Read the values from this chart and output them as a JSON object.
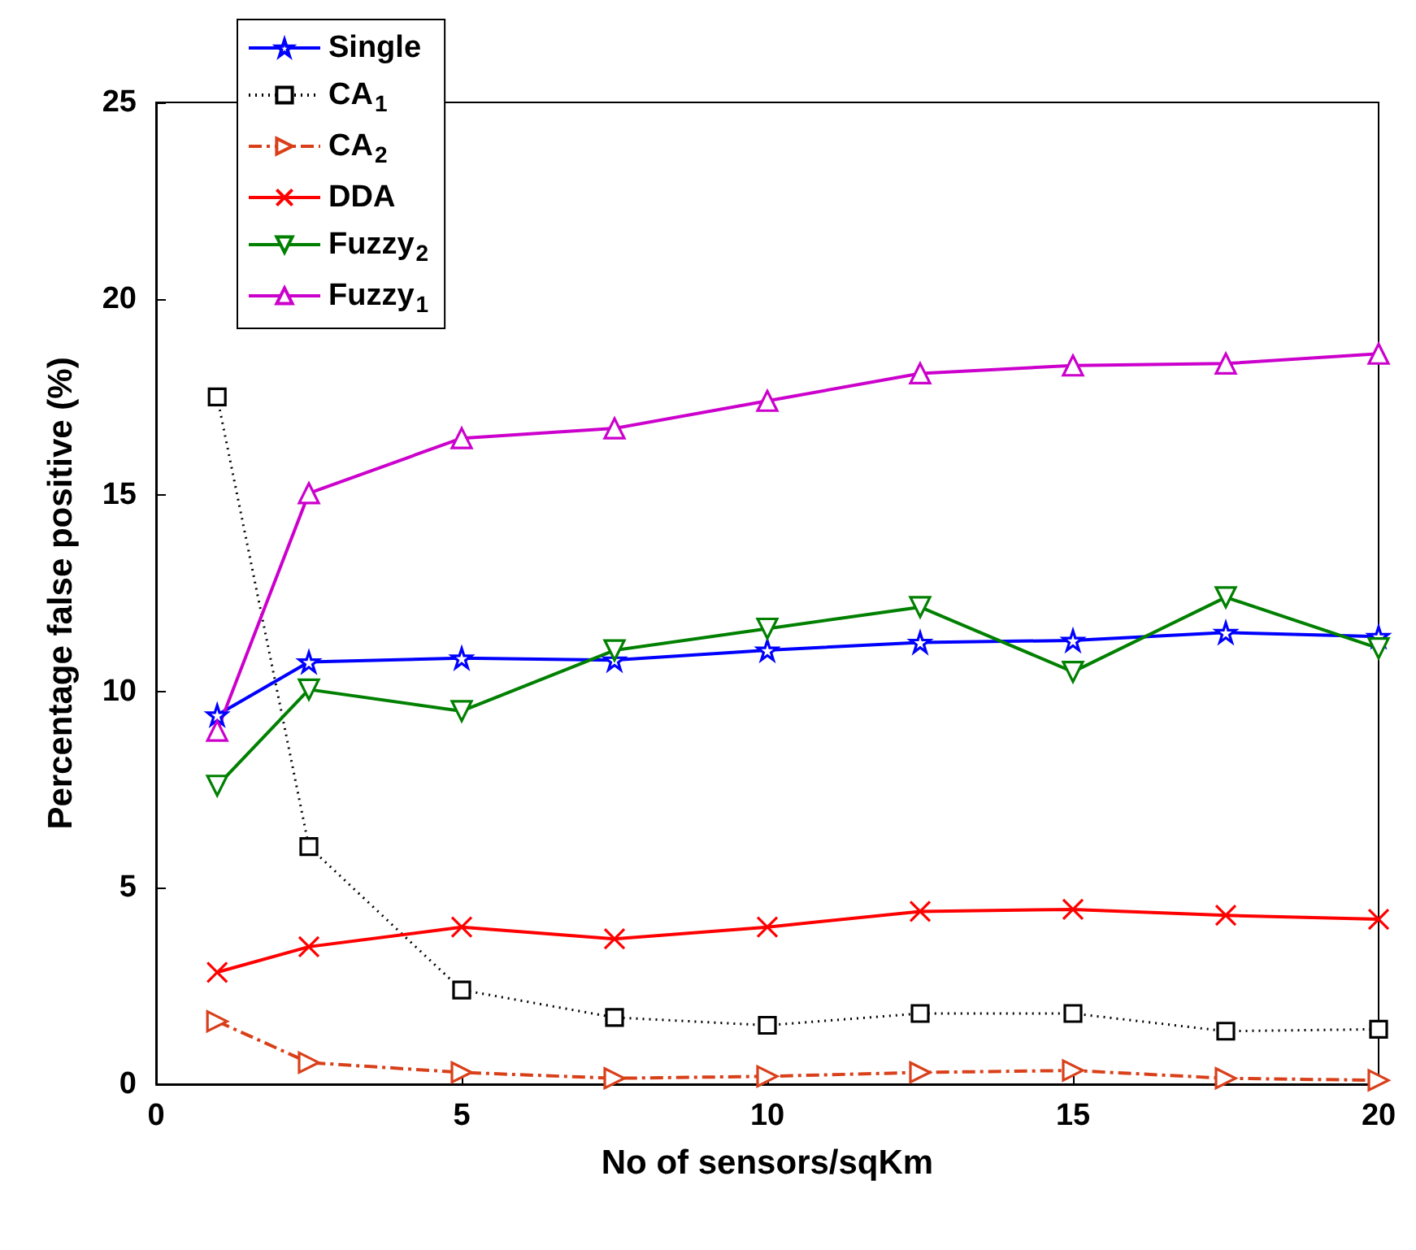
{
  "chart_data": {
    "type": "line",
    "xlabel": "No of sensors/sqKm",
    "ylabel": "Percentage false positive (%)",
    "x": [
      1,
      2.5,
      5,
      7.5,
      10,
      12.5,
      15,
      17.5,
      20
    ],
    "xlim": [
      0,
      20
    ],
    "xticks": [
      0,
      5,
      10,
      15,
      20
    ],
    "ylim": [
      0,
      25
    ],
    "yticks": [
      0,
      5,
      10,
      15,
      20,
      25
    ],
    "grid": false,
    "legend": "top left",
    "series": [
      {
        "name": "Single",
        "color": "#0000ff",
        "marker": "star",
        "line_style": "solid",
        "values": [
          9.4,
          10.75,
          10.85,
          10.8,
          11.05,
          11.25,
          11.3,
          11.5,
          11.4
        ]
      },
      {
        "name": "CA$_{1}$",
        "color": "#000000",
        "marker": "square",
        "line_style": "dotted",
        "values": [
          17.5,
          6.05,
          2.4,
          1.7,
          1.5,
          1.8,
          1.8,
          1.35,
          1.4
        ]
      },
      {
        "name": "CA$_{2}$",
        "color": "#d9401a",
        "marker": "triangle-right",
        "line_style": "dashed",
        "values": [
          1.6,
          0.55,
          0.3,
          0.15,
          0.2,
          0.3,
          0.35,
          0.15,
          0.1
        ]
      },
      {
        "name": "DDA",
        "color": "#ff0000",
        "marker": "cross",
        "line_style": "solid",
        "values": [
          2.85,
          3.5,
          4.0,
          3.7,
          4.0,
          4.4,
          4.45,
          4.3,
          4.2
        ]
      },
      {
        "name": "Fuzzy$_{2}$",
        "color": "#008000",
        "marker": "triangle-down",
        "line_style": "solid",
        "values": [
          7.6,
          10.05,
          9.5,
          11.05,
          11.6,
          12.15,
          10.5,
          12.4,
          11.1
        ]
      },
      {
        "name": "Fuzzy$_{1}$",
        "color": "#cc00cc",
        "marker": "triangle",
        "line_style": "solid",
        "values": [
          9.0,
          15.05,
          16.45,
          16.7,
          17.4,
          18.1,
          18.3,
          18.35,
          18.6
        ]
      }
    ]
  }
}
